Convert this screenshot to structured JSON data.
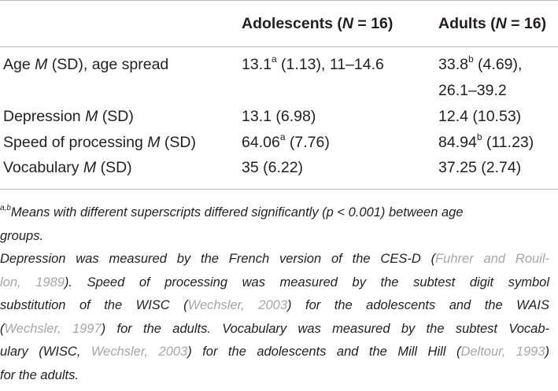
{
  "table": {
    "headers": {
      "col1": "Adolescents (",
      "col1_n": "N",
      "col1_eq": " = 16)",
      "col2": "Adults (",
      "col2_n": "N",
      "col2_eq": " = 16)"
    },
    "rows": [
      {
        "label_pre": "Age ",
        "label_m": "M",
        "label_post": " (SD), age spread",
        "c1_main": "13.1",
        "c1_sup": "a",
        "c1_rest": " (1.13), 11–14.6",
        "c2_main": "33.8",
        "c2_sup": "b",
        "c2_rest": " (4.69),",
        "c2_line2": "26.1–39.2"
      },
      {
        "label_pre": "Depression ",
        "label_m": "M",
        "label_post": " (SD)",
        "c1": "13.1 (6.98)",
        "c2": "12.4 (10.53)"
      },
      {
        "label_pre": "Speed of processing ",
        "label_m": "M",
        "label_post": " (SD)",
        "c1_main": "64.06",
        "c1_sup": "a",
        "c1_rest": " (7.76)",
        "c2_main": "84.94",
        "c2_sup": "b",
        "c2_rest": " (11.23)"
      },
      {
        "label_pre": "Vocabulary ",
        "label_m": "M",
        "label_post": " (SD)",
        "c1": "35 (6.22)",
        "c2": "37.25 (2.74)"
      }
    ]
  },
  "notes": {
    "n1_sup": "a,b",
    "n1_a": "Means with different superscripts differed significantly (p < 0.001) between age",
    "n1_b": "groups.",
    "n2_l1_a": "Depression was measured by the French version of the CES-D (",
    "n2_l1_ref": "Fuhrer and Rouil-",
    "n2_l2_ref": "lon, 1989",
    "n2_l2_b": "). Speed of processing was measured by the subtest digit symbol",
    "n2_l3_a": "substitution of the WISC (",
    "n2_l3_ref": "Wechsler, 2003",
    "n2_l3_b": ") for the adolescents and the WAIS",
    "n2_l4_a": "(",
    "n2_l4_ref": "Wechsler, 1997",
    "n2_l4_b": ") for the adults. Vocabulary was measured by the subtest Vocab-",
    "n2_l5_a": "ulary (WISC, ",
    "n2_l5_ref1": "Wechsler, 2003",
    "n2_l5_b": ") for the adolescents and the Mill Hill (",
    "n2_l5_ref2": "Deltour, 1993",
    "n2_l5_c": ")",
    "n2_l6": "for the adults."
  }
}
